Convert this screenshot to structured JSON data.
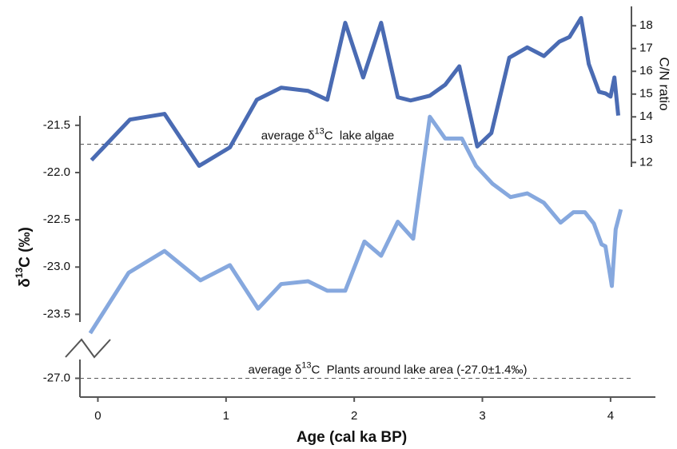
{
  "chart_data": {
    "type": "line",
    "xlabel": "Age (cal ka BP)",
    "ylabel": [
      "δ",
      "13",
      "C (‰)"
    ],
    "y2label": "C/N ratio",
    "xlim": [
      -0.14,
      4.35
    ],
    "xticks": [
      0,
      1,
      2,
      3,
      4
    ],
    "ylim": [
      -23.75,
      -21.4
    ],
    "yticks": [
      {
        "value": -21.5,
        "label": "-21.5"
      },
      {
        "value": -22,
        "label": "-22.0"
      },
      {
        "value": -22.5,
        "label": "-22.5"
      },
      {
        "value": -23,
        "label": "-23.0"
      },
      {
        "value": -23.5,
        "label": "-23.5"
      }
    ],
    "ylim_break": [
      -27.2,
      -26.8
    ],
    "yticks_break": [
      {
        "value": -27,
        "label": "-27.0"
      }
    ],
    "y2lim": [
      11.8,
      18.85
    ],
    "y2ticks": [
      12,
      13,
      14,
      15,
      16,
      17,
      18
    ],
    "reference_lines": [
      {
        "value": -21.7,
        "label": [
          "average δ",
          "13",
          "C  lake algae"
        ]
      },
      {
        "value": -27,
        "label": [
          "average δ",
          "13",
          "C  Plants around lake area (-27.0±1.4‰)"
        ]
      }
    ],
    "series": [
      {
        "color": "#86a8de",
        "x": [
          -0.06,
          0.24,
          0.52,
          0.8,
          1.03,
          1.25,
          1.43,
          1.64,
          1.79,
          1.93,
          2.08,
          2.21,
          2.34,
          2.46,
          2.59,
          2.71,
          2.84,
          2.95,
          3.08,
          3.22,
          3.35,
          3.48,
          3.61,
          3.71,
          3.8,
          3.87,
          3.93,
          3.96,
          4.01,
          4.04,
          4.08
        ],
        "values": [
          -23.7,
          -23.06,
          -22.83,
          -23.14,
          -22.98,
          -23.44,
          -23.18,
          -23.15,
          -23.25,
          -23.25,
          -22.73,
          -22.88,
          -22.52,
          -22.7,
          -21.41,
          -21.64,
          -21.64,
          -21.93,
          -22.12,
          -22.26,
          -22.22,
          -22.32,
          -22.53,
          -22.42,
          -22.42,
          -22.54,
          -22.76,
          -22.78,
          -23.2,
          -22.6,
          -22.39
        ]
      },
      {
        "color": "#4a6bb3",
        "axis": "y2",
        "x": [
          -0.05,
          0.25,
          0.52,
          0.79,
          1.03,
          1.24,
          1.43,
          1.64,
          1.79,
          1.93,
          2.07,
          2.21,
          2.34,
          2.44,
          2.59,
          2.71,
          2.82,
          2.96,
          3.07,
          3.21,
          3.35,
          3.48,
          3.6,
          3.68,
          3.77,
          3.83,
          3.91,
          3.96,
          4.0,
          4.03,
          4.06
        ],
        "values": [
          12.1,
          13.88,
          14.13,
          11.85,
          12.66,
          14.75,
          15.28,
          15.14,
          14.75,
          18.13,
          15.73,
          18.13,
          14.86,
          14.72,
          14.93,
          15.41,
          16.22,
          12.7,
          13.29,
          16.6,
          17.05,
          16.67,
          17.3,
          17.51,
          18.34,
          16.32,
          15.1,
          15.03,
          14.89,
          15.73,
          14.06
        ]
      }
    ]
  }
}
